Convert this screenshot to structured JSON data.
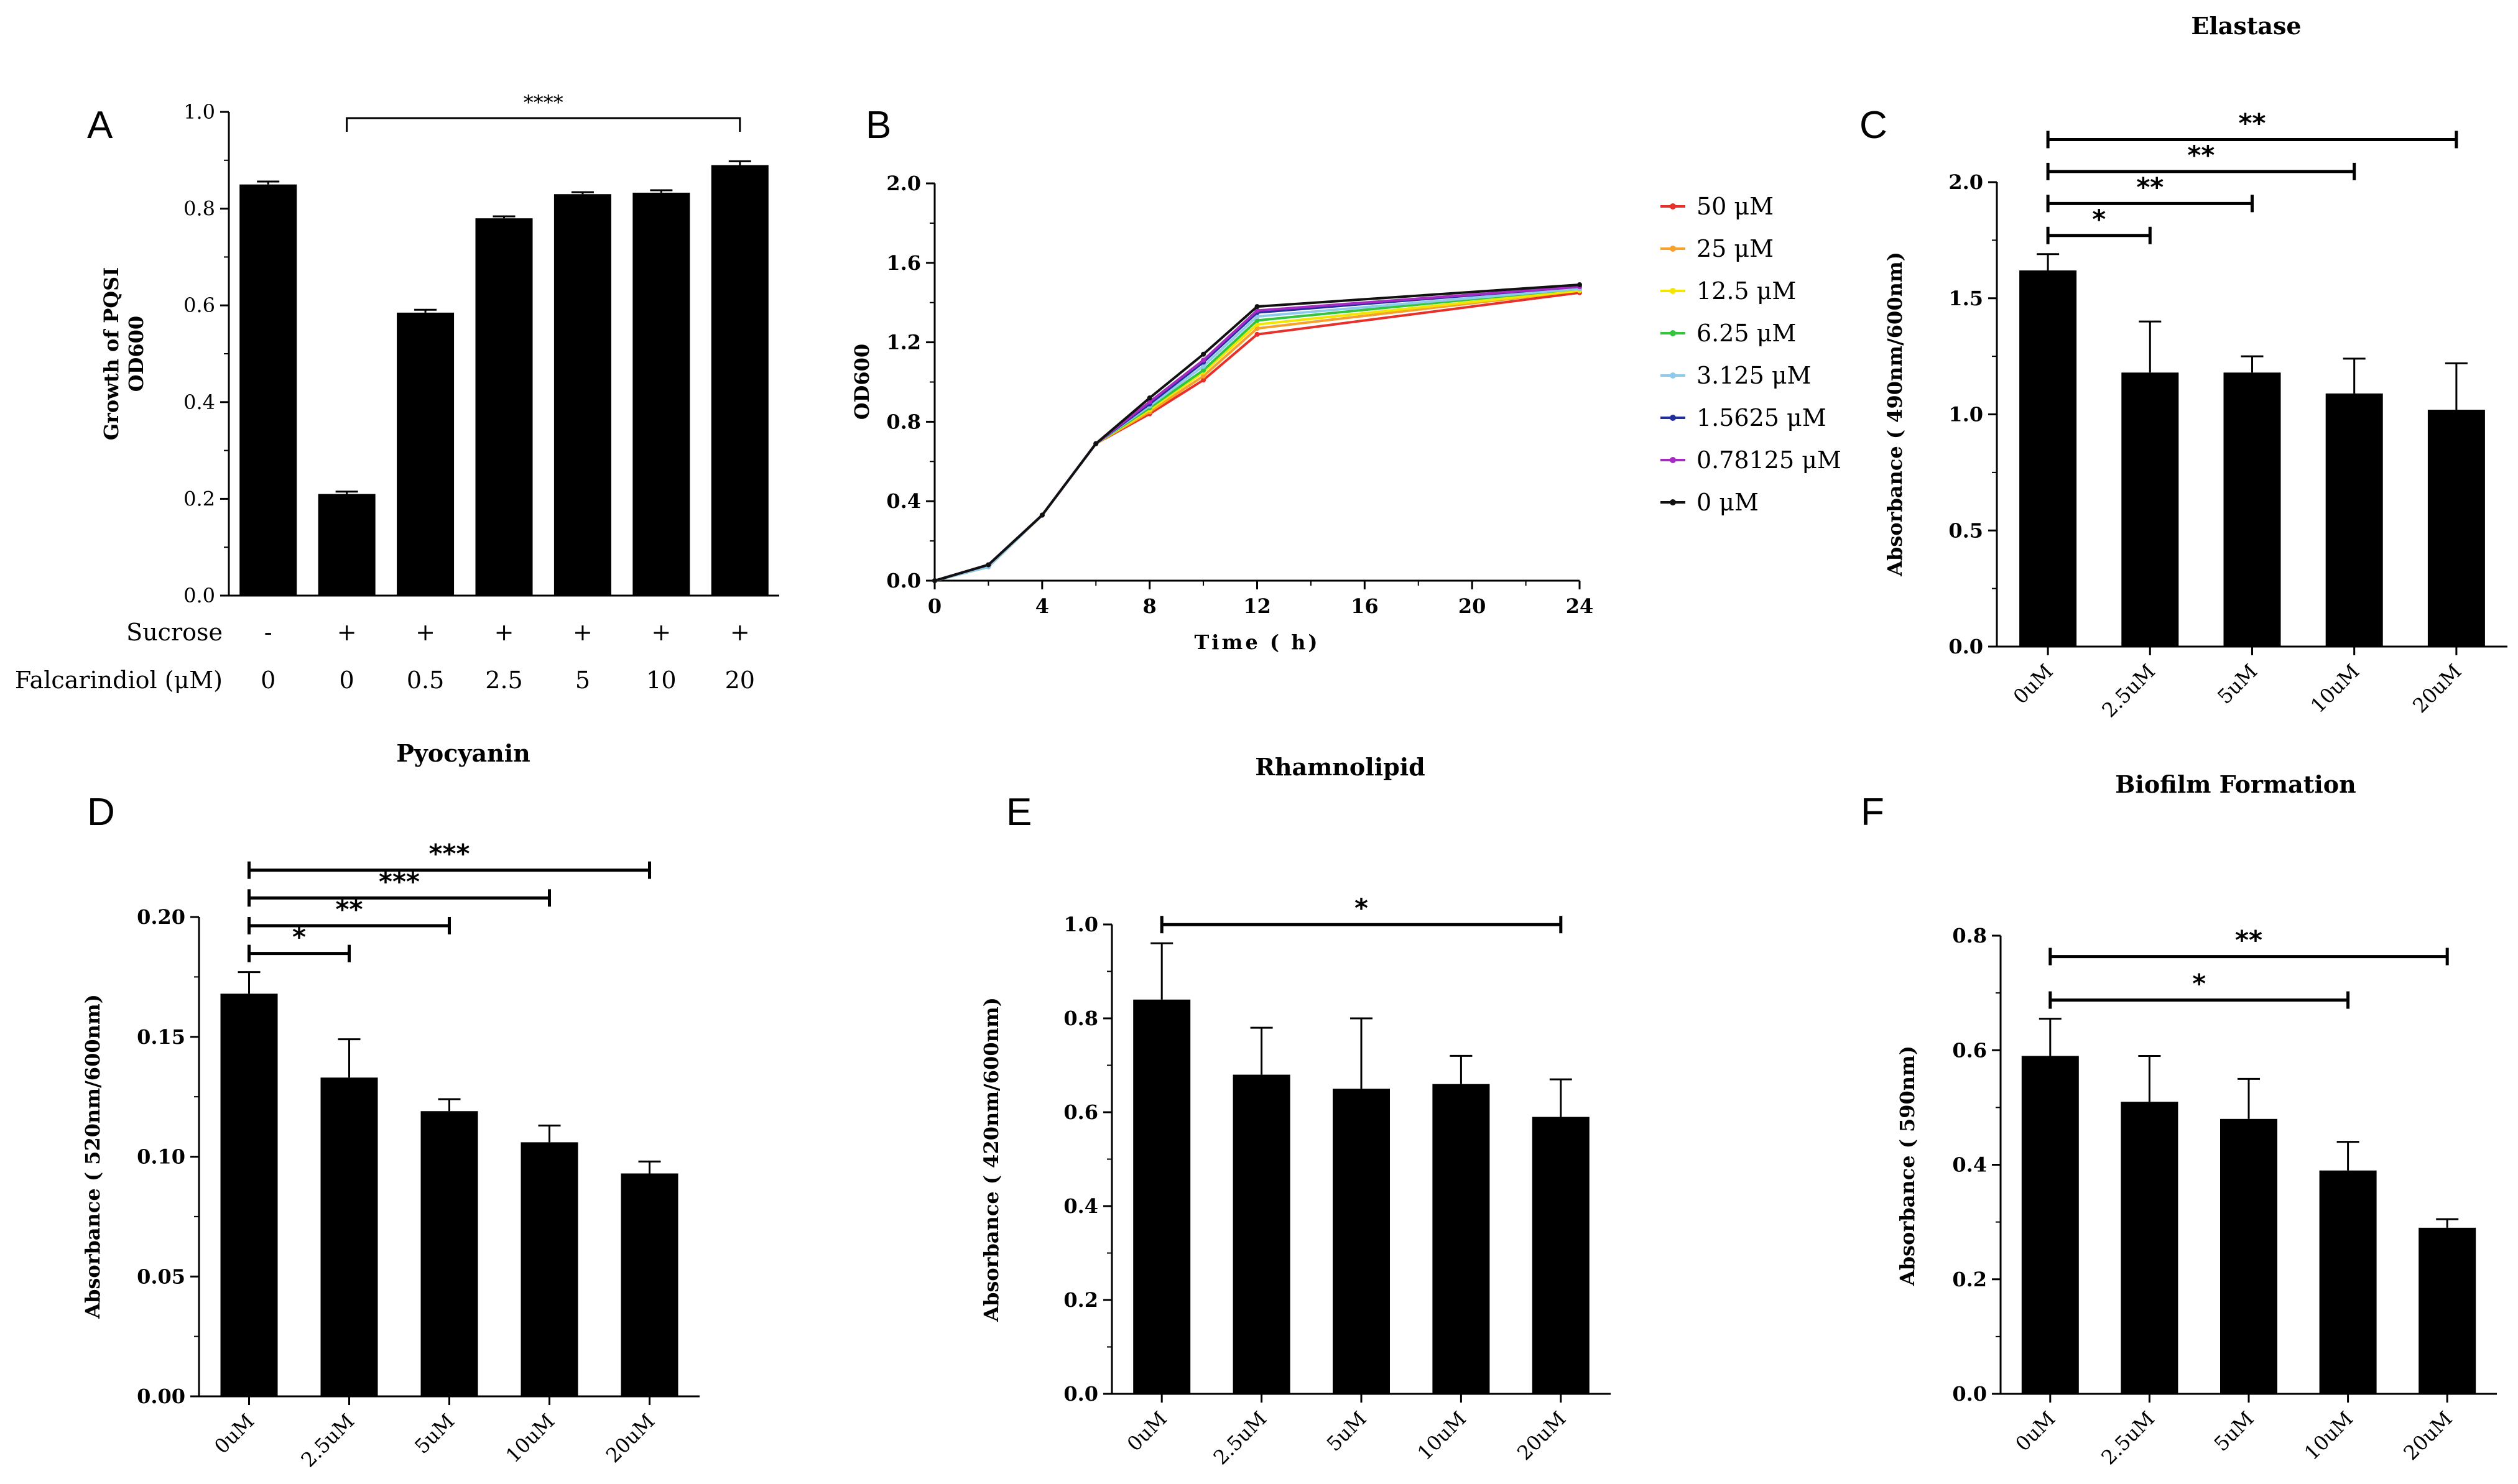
{
  "chart_data": [
    {
      "panel": "A",
      "type": "bar",
      "title": "",
      "ylabel_lines": [
        "Growth of PQSI",
        "OD600"
      ],
      "ylim": [
        0,
        1.0
      ],
      "ytick_values": [
        0,
        0.2,
        0.4,
        0.6,
        0.8,
        1.0
      ],
      "ytick_labels": [
        "0.0",
        "0.2",
        "0.4",
        "0.6",
        "0.8",
        "1.0"
      ],
      "values": [
        0.85,
        0.21,
        0.585,
        0.78,
        0.83,
        0.833,
        0.89
      ],
      "errors": [
        0.006,
        0.005,
        0.006,
        0.004,
        0.004,
        0.005,
        0.008
      ],
      "row_labels": [
        "Sucrose",
        "Falcarindiol (μM)"
      ],
      "sucrose": [
        "-",
        "+",
        "+",
        "+",
        "+",
        "+",
        "+"
      ],
      "falcarindiol": [
        "0",
        "0",
        "0.5",
        "2.5",
        "5",
        "10",
        "20"
      ],
      "significance": [
        {
          "from": 1,
          "to": 6,
          "label": "****"
        }
      ]
    },
    {
      "panel": "B",
      "type": "line",
      "title": "",
      "xlabel": "Time ( h)",
      "ylabel": "OD600",
      "xlim": [
        0,
        24
      ],
      "ylim": [
        0,
        2.0
      ],
      "xtick_values": [
        0,
        4,
        8,
        12,
        16,
        20,
        24
      ],
      "xtick_labels": [
        "0",
        "4",
        "8",
        "12",
        "16",
        "20",
        "24"
      ],
      "ytick_values": [
        0,
        0.4,
        0.8,
        1.2,
        1.6,
        2.0
      ],
      "ytick_labels": [
        "0.0",
        "0.4",
        "0.8",
        "1.2",
        "1.6",
        "2.0"
      ],
      "x": [
        0,
        2,
        4,
        6,
        8,
        10,
        12,
        24
      ],
      "series": [
        {
          "name": "50 μM",
          "color": "#e8302a",
          "values": [
            0,
            0.07,
            0.33,
            0.69,
            0.84,
            1.01,
            1.24,
            1.45
          ]
        },
        {
          "name": "25 μM",
          "color": "#f7a02c",
          "values": [
            0,
            0.07,
            0.33,
            0.69,
            0.85,
            1.03,
            1.27,
            1.46
          ]
        },
        {
          "name": "12.5 μM",
          "color": "#f2e600",
          "values": [
            0,
            0.07,
            0.33,
            0.69,
            0.86,
            1.05,
            1.29,
            1.46
          ]
        },
        {
          "name": "6.25 μM",
          "color": "#33c63c",
          "values": [
            0,
            0.07,
            0.33,
            0.69,
            0.87,
            1.06,
            1.31,
            1.47
          ]
        },
        {
          "name": "3.125 μM",
          "color": "#8ecbea",
          "values": [
            0,
            0.07,
            0.33,
            0.69,
            0.88,
            1.08,
            1.33,
            1.47
          ]
        },
        {
          "name": "1.5625 μM",
          "color": "#1f2f9e",
          "values": [
            0,
            0.08,
            0.33,
            0.69,
            0.89,
            1.1,
            1.35,
            1.48
          ]
        },
        {
          "name": "0.78125 μM",
          "color": "#a62bc2",
          "values": [
            0,
            0.08,
            0.33,
            0.69,
            0.9,
            1.11,
            1.36,
            1.48
          ]
        },
        {
          "name": "0 μM",
          "color": "#111111",
          "values": [
            0,
            0.08,
            0.33,
            0.69,
            0.92,
            1.14,
            1.38,
            1.49
          ]
        }
      ]
    },
    {
      "panel": "C",
      "type": "bar",
      "title": "Elastase",
      "ylabel": "Absorbance ( 490nm/600nm)",
      "ylim": [
        0,
        2.0
      ],
      "ytick_values": [
        0,
        0.5,
        1.0,
        1.5,
        2.0
      ],
      "ytick_labels": [
        "0.0",
        "0.5",
        "1.0",
        "1.5",
        "2.0"
      ],
      "categories": [
        "0uM",
        "2.5uM",
        "5uM",
        "10uM",
        "20uM"
      ],
      "values": [
        1.62,
        1.18,
        1.18,
        1.09,
        1.02
      ],
      "errors": [
        0.07,
        0.22,
        0.07,
        0.15,
        0.2
      ],
      "significance": [
        {
          "from": 0,
          "to": 1,
          "label": "*"
        },
        {
          "from": 0,
          "to": 2,
          "label": "**"
        },
        {
          "from": 0,
          "to": 3,
          "label": "**"
        },
        {
          "from": 0,
          "to": 4,
          "label": "**"
        }
      ]
    },
    {
      "panel": "D",
      "type": "bar",
      "title": "Pyocyanin",
      "ylabel": "Absorbance ( 520nm/600nm)",
      "ylim": [
        0,
        0.2
      ],
      "ytick_values": [
        0,
        0.05,
        0.1,
        0.15,
        0.2
      ],
      "ytick_labels": [
        "0.00",
        "0.05",
        "0.10",
        "0.15",
        "0.20"
      ],
      "categories": [
        "0uM",
        "2.5uM",
        "5uM",
        "10uM",
        "20uM"
      ],
      "values": [
        0.168,
        0.133,
        0.119,
        0.106,
        0.093
      ],
      "errors": [
        0.009,
        0.016,
        0.005,
        0.007,
        0.005
      ],
      "significance": [
        {
          "from": 0,
          "to": 1,
          "label": "*"
        },
        {
          "from": 0,
          "to": 2,
          "label": "**"
        },
        {
          "from": 0,
          "to": 3,
          "label": "***"
        },
        {
          "from": 0,
          "to": 4,
          "label": "***"
        }
      ]
    },
    {
      "panel": "E",
      "type": "bar",
      "title": "Rhamnolipid",
      "ylabel": "Absorbance ( 420nm/600nm)",
      "ylim": [
        0,
        1.0
      ],
      "ytick_values": [
        0,
        0.2,
        0.4,
        0.6,
        0.8,
        1.0
      ],
      "ytick_labels": [
        "0.0",
        "0.2",
        "0.4",
        "0.6",
        "0.8",
        "1.0"
      ],
      "categories": [
        "0uM",
        "2.5uM",
        "5uM",
        "10uM",
        "20uM"
      ],
      "values": [
        0.84,
        0.68,
        0.65,
        0.66,
        0.59
      ],
      "errors": [
        0.12,
        0.1,
        0.15,
        0.06,
        0.08
      ],
      "significance": [
        {
          "from": 0,
          "to": 4,
          "label": "*"
        }
      ]
    },
    {
      "panel": "F",
      "type": "bar",
      "title": "Biofilm Formation",
      "ylabel": "Absorbance ( 590nm)",
      "ylim": [
        0,
        0.8
      ],
      "ytick_values": [
        0,
        0.2,
        0.4,
        0.6,
        0.8
      ],
      "ytick_labels": [
        "0.0",
        "0.2",
        "0.4",
        "0.6",
        "0.8"
      ],
      "categories": [
        "0uM",
        "2.5uM",
        "5uM",
        "10uM",
        "20uM"
      ],
      "values": [
        0.59,
        0.51,
        0.48,
        0.39,
        0.29
      ],
      "errors": [
        0.065,
        0.08,
        0.07,
        0.05,
        0.015
      ],
      "significance": [
        {
          "from": 0,
          "to": 3,
          "label": "*"
        },
        {
          "from": 0,
          "to": 4,
          "label": "**"
        }
      ]
    }
  ]
}
